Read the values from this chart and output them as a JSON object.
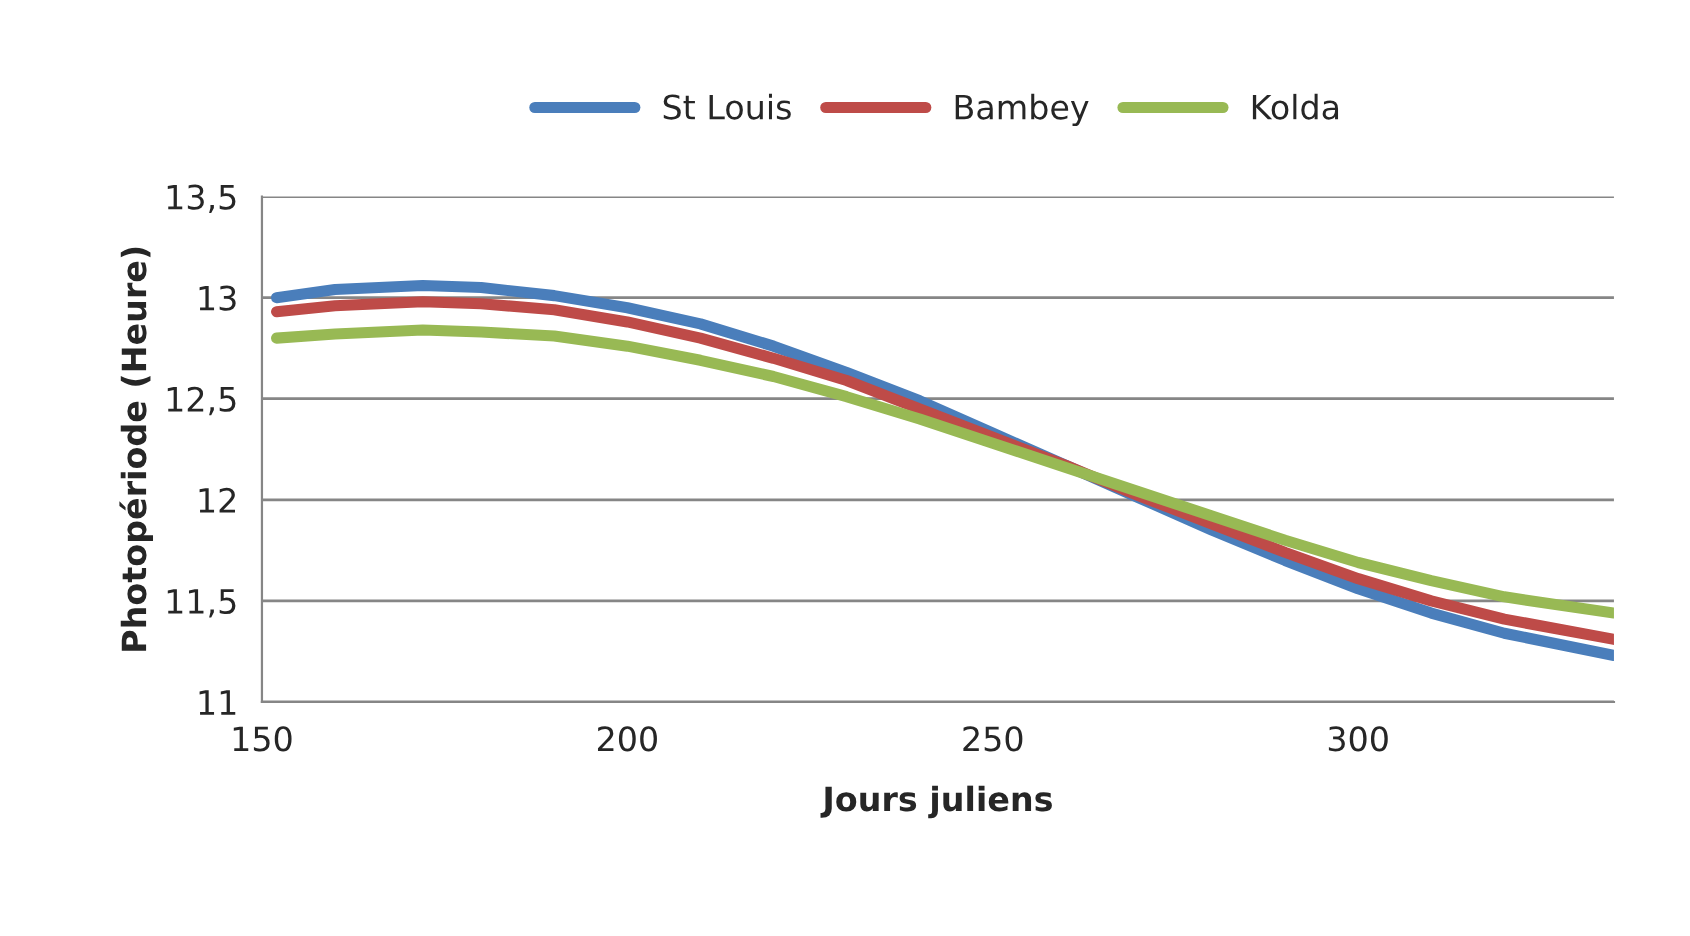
{
  "chart_data": {
    "type": "line",
    "xlabel": "Jours juliens",
    "ylabel": "Photopériode (Heure)",
    "x": [
      152,
      160,
      172,
      180,
      190,
      200,
      210,
      220,
      230,
      240,
      250,
      260,
      270,
      280,
      290,
      300,
      310,
      320,
      335
    ],
    "series": [
      {
        "name": "St Louis",
        "color": "#4a7ebb",
        "values": [
          13.0,
          13.04,
          13.06,
          13.05,
          13.01,
          12.95,
          12.87,
          12.76,
          12.63,
          12.49,
          12.33,
          12.17,
          12.01,
          11.85,
          11.7,
          11.56,
          11.44,
          11.34,
          11.23
        ]
      },
      {
        "name": "Bambey",
        "color": "#be4b48",
        "values": [
          12.93,
          12.96,
          12.98,
          12.97,
          12.94,
          12.88,
          12.8,
          12.7,
          12.59,
          12.45,
          12.31,
          12.17,
          12.02,
          11.88,
          11.74,
          11.61,
          11.5,
          11.41,
          11.31
        ]
      },
      {
        "name": "Kolda",
        "color": "#98b954",
        "values": [
          12.8,
          12.82,
          12.84,
          12.83,
          12.81,
          12.76,
          12.69,
          12.61,
          12.51,
          12.4,
          12.28,
          12.16,
          12.04,
          11.92,
          11.8,
          11.69,
          11.6,
          11.52,
          11.44
        ]
      }
    ],
    "xlim": [
      150,
      335
    ],
    "xticks": [
      150,
      200,
      250,
      300
    ],
    "ylim": [
      11,
      13.5
    ],
    "yticks": [
      {
        "value": 11,
        "label": "11"
      },
      {
        "value": 11.5,
        "label": "11,5"
      },
      {
        "value": 12,
        "label": "12"
      },
      {
        "value": 12.5,
        "label": "12,5"
      },
      {
        "value": 13,
        "label": "13"
      },
      {
        "value": 13.5,
        "label": "13,5"
      }
    ],
    "grid": "y",
    "legend": "top",
    "marker": "none",
    "line_style": "solid"
  }
}
